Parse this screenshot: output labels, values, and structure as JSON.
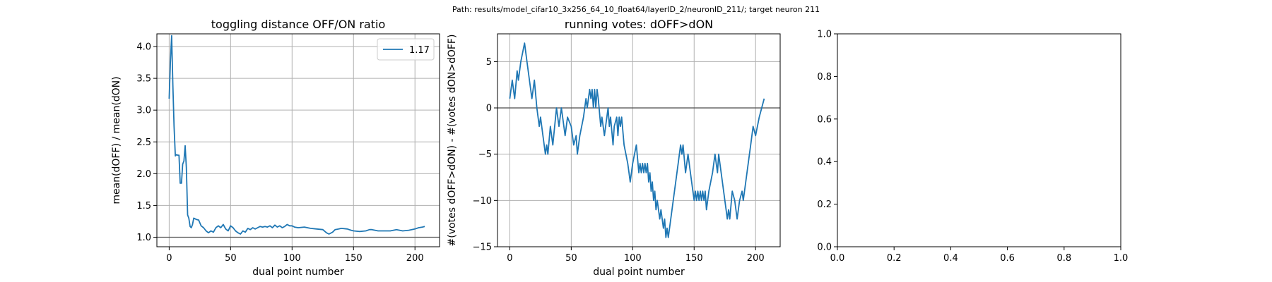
{
  "suptitle": "Path: results/model_cifar10_3x256_64_10_float64/layerID_2/neuronID_211/; target neuron 211",
  "chart_data": [
    {
      "type": "line",
      "title": "toggling distance OFF/ON ratio",
      "xlabel": "dual point number",
      "ylabel": "mean(dOFF) / mean(dON)",
      "xlim": [
        -10,
        220
      ],
      "ylim": [
        0.85,
        4.2
      ],
      "xticks": [
        0,
        50,
        100,
        150,
        200
      ],
      "yticks": [
        1.0,
        1.5,
        2.0,
        2.5,
        3.0,
        3.5,
        4.0
      ],
      "xtick_labels": [
        "0",
        "50",
        "100",
        "150",
        "200"
      ],
      "ytick_labels": [
        "1.0",
        "1.5",
        "2.0",
        "2.5",
        "3.0",
        "3.5",
        "4.0"
      ],
      "hline": 1.0,
      "grid": true,
      "legend_position": "top-right",
      "color": "#1f77b4",
      "series": [
        {
          "name": "1.17",
          "points": [
            [
              0,
              3.18
            ],
            [
              1,
              3.75
            ],
            [
              2,
              4.17
            ],
            [
              3,
              3.4
            ],
            [
              4,
              2.75
            ],
            [
              5,
              2.28
            ],
            [
              6,
              2.3
            ],
            [
              7,
              2.29
            ],
            [
              8,
              2.29
            ],
            [
              9,
              1.85
            ],
            [
              10,
              1.85
            ],
            [
              11,
              2.15
            ],
            [
              12,
              2.2
            ],
            [
              13,
              2.44
            ],
            [
              14,
              2.1
            ],
            [
              15,
              1.35
            ],
            [
              16,
              1.3
            ],
            [
              17,
              1.17
            ],
            [
              18,
              1.15
            ],
            [
              19,
              1.2
            ],
            [
              20,
              1.3
            ],
            [
              22,
              1.28
            ],
            [
              24,
              1.27
            ],
            [
              26,
              1.18
            ],
            [
              28,
              1.15
            ],
            [
              30,
              1.1
            ],
            [
              32,
              1.07
            ],
            [
              34,
              1.1
            ],
            [
              36,
              1.08
            ],
            [
              38,
              1.15
            ],
            [
              40,
              1.18
            ],
            [
              42,
              1.15
            ],
            [
              44,
              1.2
            ],
            [
              46,
              1.13
            ],
            [
              48,
              1.1
            ],
            [
              50,
              1.18
            ],
            [
              52,
              1.15
            ],
            [
              54,
              1.1
            ],
            [
              56,
              1.07
            ],
            [
              58,
              1.05
            ],
            [
              60,
              1.1
            ],
            [
              62,
              1.08
            ],
            [
              64,
              1.14
            ],
            [
              66,
              1.12
            ],
            [
              68,
              1.15
            ],
            [
              70,
              1.13
            ],
            [
              72,
              1.15
            ],
            [
              74,
              1.17
            ],
            [
              76,
              1.16
            ],
            [
              78,
              1.17
            ],
            [
              80,
              1.16
            ],
            [
              82,
              1.18
            ],
            [
              84,
              1.15
            ],
            [
              86,
              1.19
            ],
            [
              88,
              1.16
            ],
            [
              90,
              1.18
            ],
            [
              92,
              1.15
            ],
            [
              94,
              1.17
            ],
            [
              96,
              1.2
            ],
            [
              98,
              1.18
            ],
            [
              100,
              1.18
            ],
            [
              102,
              1.16
            ],
            [
              105,
              1.15
            ],
            [
              110,
              1.16
            ],
            [
              115,
              1.14
            ],
            [
              120,
              1.13
            ],
            [
              125,
              1.12
            ],
            [
              128,
              1.07
            ],
            [
              130,
              1.05
            ],
            [
              133,
              1.08
            ],
            [
              135,
              1.12
            ],
            [
              138,
              1.13
            ],
            [
              140,
              1.14
            ],
            [
              145,
              1.13
            ],
            [
              148,
              1.11
            ],
            [
              150,
              1.1
            ],
            [
              155,
              1.09
            ],
            [
              160,
              1.1
            ],
            [
              163,
              1.12
            ],
            [
              165,
              1.12
            ],
            [
              170,
              1.1
            ],
            [
              175,
              1.1
            ],
            [
              180,
              1.1
            ],
            [
              185,
              1.12
            ],
            [
              190,
              1.1
            ],
            [
              195,
              1.11
            ],
            [
              200,
              1.13
            ],
            [
              203,
              1.15
            ],
            [
              206,
              1.16
            ],
            [
              208,
              1.17
            ]
          ]
        }
      ]
    },
    {
      "type": "line",
      "title": "running votes: dOFF>dON",
      "xlabel": "dual point number",
      "ylabel": "#(votes dOFF>dON) - #(votes dON>dOFF)",
      "xlim": [
        -10,
        220
      ],
      "ylim": [
        -15,
        8
      ],
      "xticks": [
        0,
        50,
        100,
        150,
        200
      ],
      "yticks": [
        -15,
        -10,
        -5,
        0,
        5
      ],
      "xtick_labels": [
        "0",
        "50",
        "100",
        "150",
        "200"
      ],
      "ytick_labels": [
        "−15",
        "−10",
        "−5",
        "0",
        "5"
      ],
      "hline": 0,
      "grid": true,
      "color": "#1f77b4",
      "series": [
        {
          "points": [
            [
              0,
              1
            ],
            [
              2,
              3
            ],
            [
              4,
              1
            ],
            [
              6,
              4
            ],
            [
              7,
              3
            ],
            [
              9,
              5
            ],
            [
              12,
              7
            ],
            [
              14,
              5
            ],
            [
              16,
              3
            ],
            [
              18,
              1
            ],
            [
              20,
              3
            ],
            [
              22,
              0
            ],
            [
              24,
              -2
            ],
            [
              25,
              -1
            ],
            [
              27,
              -3
            ],
            [
              29,
              -5
            ],
            [
              30,
              -4
            ],
            [
              31,
              -5
            ],
            [
              33,
              -2
            ],
            [
              35,
              -4
            ],
            [
              38,
              0
            ],
            [
              40,
              -2
            ],
            [
              42,
              0
            ],
            [
              45,
              -3
            ],
            [
              47,
              -1
            ],
            [
              50,
              -2
            ],
            [
              52,
              -4
            ],
            [
              54,
              -3
            ],
            [
              55,
              -5
            ],
            [
              57,
              -3
            ],
            [
              60,
              -1
            ],
            [
              62,
              1
            ],
            [
              63,
              0
            ],
            [
              65,
              2
            ],
            [
              66,
              1
            ],
            [
              67,
              2
            ],
            [
              68,
              0
            ],
            [
              69,
              2
            ],
            [
              70,
              0
            ],
            [
              71,
              2
            ],
            [
              72,
              1
            ],
            [
              74,
              -2
            ],
            [
              75,
              -1
            ],
            [
              77,
              -3
            ],
            [
              78,
              -2
            ],
            [
              80,
              0
            ],
            [
              81,
              -2
            ],
            [
              82,
              -1
            ],
            [
              84,
              -4
            ],
            [
              85,
              -2
            ],
            [
              87,
              -1
            ],
            [
              88,
              -3
            ],
            [
              89,
              -1
            ],
            [
              90,
              -2
            ],
            [
              91,
              -1
            ],
            [
              93,
              -4
            ],
            [
              96,
              -6
            ],
            [
              97,
              -7
            ],
            [
              98,
              -8
            ],
            [
              100,
              -6
            ],
            [
              103,
              -4
            ],
            [
              105,
              -7
            ],
            [
              106,
              -6
            ],
            [
              107,
              -7
            ],
            [
              108,
              -6
            ],
            [
              109,
              -7
            ],
            [
              110,
              -6
            ],
            [
              111,
              -7
            ],
            [
              112,
              -6
            ],
            [
              113,
              -8
            ],
            [
              114,
              -7
            ],
            [
              115,
              -9
            ],
            [
              116,
              -8
            ],
            [
              117,
              -10
            ],
            [
              118,
              -9
            ],
            [
              119,
              -11
            ],
            [
              120,
              -10
            ],
            [
              122,
              -12
            ],
            [
              123,
              -11
            ],
            [
              125,
              -13
            ],
            [
              126,
              -12
            ],
            [
              127,
              -14
            ],
            [
              128,
              -13
            ],
            [
              129,
              -14
            ],
            [
              131,
              -12
            ],
            [
              133,
              -10
            ],
            [
              135,
              -8
            ],
            [
              137,
              -6
            ],
            [
              139,
              -4
            ],
            [
              140,
              -5
            ],
            [
              141,
              -4
            ],
            [
              143,
              -7
            ],
            [
              145,
              -5
            ],
            [
              147,
              -7
            ],
            [
              149,
              -9
            ],
            [
              150,
              -10
            ],
            [
              151,
              -9
            ],
            [
              152,
              -10
            ],
            [
              153,
              -9
            ],
            [
              154,
              -10
            ],
            [
              155,
              -9
            ],
            [
              156,
              -10
            ],
            [
              157,
              -9
            ],
            [
              158,
              -10
            ],
            [
              159,
              -9
            ],
            [
              160,
              -11
            ],
            [
              162,
              -9
            ],
            [
              165,
              -7
            ],
            [
              167,
              -5
            ],
            [
              169,
              -7
            ],
            [
              170,
              -5
            ],
            [
              172,
              -7
            ],
            [
              174,
              -9
            ],
            [
              176,
              -11
            ],
            [
              177,
              -12
            ],
            [
              178,
              -11
            ],
            [
              179,
              -12
            ],
            [
              181,
              -9
            ],
            [
              183,
              -10
            ],
            [
              185,
              -12
            ],
            [
              187,
              -10
            ],
            [
              189,
              -9
            ],
            [
              190,
              -10
            ],
            [
              192,
              -8
            ],
            [
              194,
              -6
            ],
            [
              196,
              -4
            ],
            [
              198,
              -2
            ],
            [
              200,
              -3
            ],
            [
              203,
              -1
            ],
            [
              205,
              0
            ],
            [
              207,
              1
            ]
          ]
        }
      ]
    },
    {
      "type": "line",
      "title": "",
      "xlabel": "",
      "ylabel": "",
      "xlim": [
        0,
        1
      ],
      "ylim": [
        0,
        1
      ],
      "xticks": [
        0,
        0.2,
        0.4,
        0.6,
        0.8,
        1.0
      ],
      "yticks": [
        0,
        0.2,
        0.4,
        0.6,
        0.8,
        1.0
      ],
      "xtick_labels": [
        "0.0",
        "0.2",
        "0.4",
        "0.6",
        "0.8",
        "1.0"
      ],
      "ytick_labels": [
        "0.0",
        "0.2",
        "0.4",
        "0.6",
        "0.8",
        "1.0"
      ],
      "grid": false,
      "series": []
    }
  ]
}
